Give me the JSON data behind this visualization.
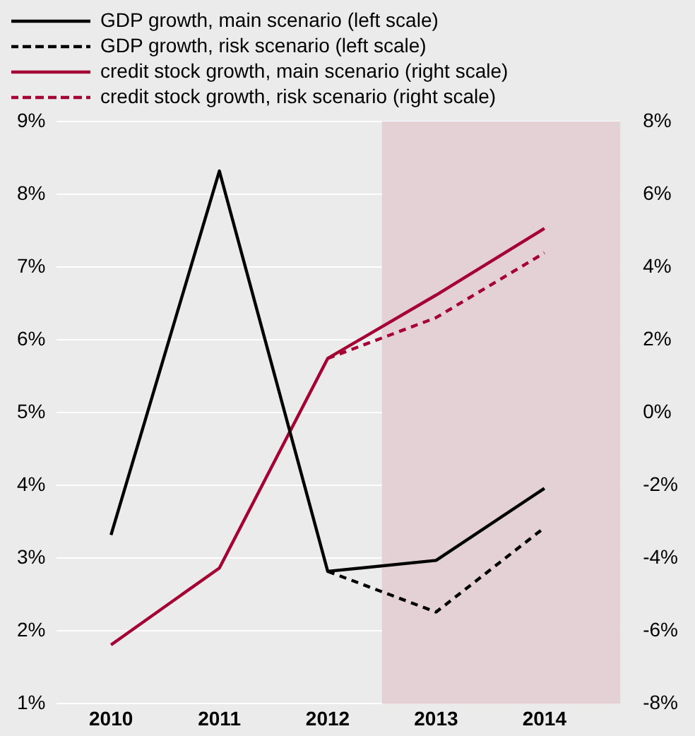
{
  "chart_data": {
    "type": "line",
    "x": [
      2010,
      2011,
      2012,
      2013,
      2014
    ],
    "xlim": [
      2009.5,
      2014.7
    ],
    "xticks": [
      2010,
      2011,
      2012,
      2013,
      2014
    ],
    "series": [
      {
        "name": "GDP growth, main scenario (left scale)",
        "color": "#000000",
        "line_style": "solid",
        "values": [
          3.32,
          8.32,
          2.82,
          2.97,
          3.96
        ]
      },
      {
        "name": "GDP growth, risk scenario (left scale)",
        "color": "#000000",
        "line_style": "dashed",
        "x": [
          2012,
          2013,
          2014
        ],
        "values": [
          2.82,
          2.26,
          3.42
        ]
      },
      {
        "name": "credit stock growth, main scenario (right scale)",
        "color": "#a50034",
        "line_style": "solid",
        "axis": "y2",
        "values": [
          -6.38,
          -4.27,
          1.49,
          3.23,
          5.06
        ]
      },
      {
        "name": "credit stock growth, risk scenario (right scale)",
        "color": "#a50034",
        "line_style": "dashed",
        "axis": "y2",
        "x": [
          2012,
          2013,
          2014
        ],
        "values": [
          1.49,
          2.61,
          4.39
        ]
      }
    ],
    "ylim": [
      1,
      9
    ],
    "yticks": [
      {
        "value": 1,
        "label": "1%"
      },
      {
        "value": 2,
        "label": "2%"
      },
      {
        "value": 3,
        "label": "3%"
      },
      {
        "value": 4,
        "label": "4%"
      },
      {
        "value": 5,
        "label": "5%"
      },
      {
        "value": 6,
        "label": "6%"
      },
      {
        "value": 7,
        "label": "7%"
      },
      {
        "value": 8,
        "label": "8%"
      },
      {
        "value": 9,
        "label": "9%"
      }
    ],
    "y2lim": [
      -8,
      8
    ],
    "y2ticks": [
      {
        "value": -8,
        "label": "-8%"
      },
      {
        "value": -6,
        "label": "-6%"
      },
      {
        "value": -4,
        "label": "-4%"
      },
      {
        "value": -2,
        "label": "-2%"
      },
      {
        "value": 0,
        "label": "0%"
      },
      {
        "value": 2,
        "label": "2%"
      },
      {
        "value": 4,
        "label": "4%"
      },
      {
        "value": 6,
        "label": "6%"
      },
      {
        "value": 8,
        "label": "8%"
      }
    ],
    "bands": [
      {
        "axis": "x",
        "from": 2012.5,
        "to": 2014.7,
        "color": "#e3d1d6"
      }
    ],
    "grid": "y",
    "legend": "top left",
    "marker": "none"
  }
}
